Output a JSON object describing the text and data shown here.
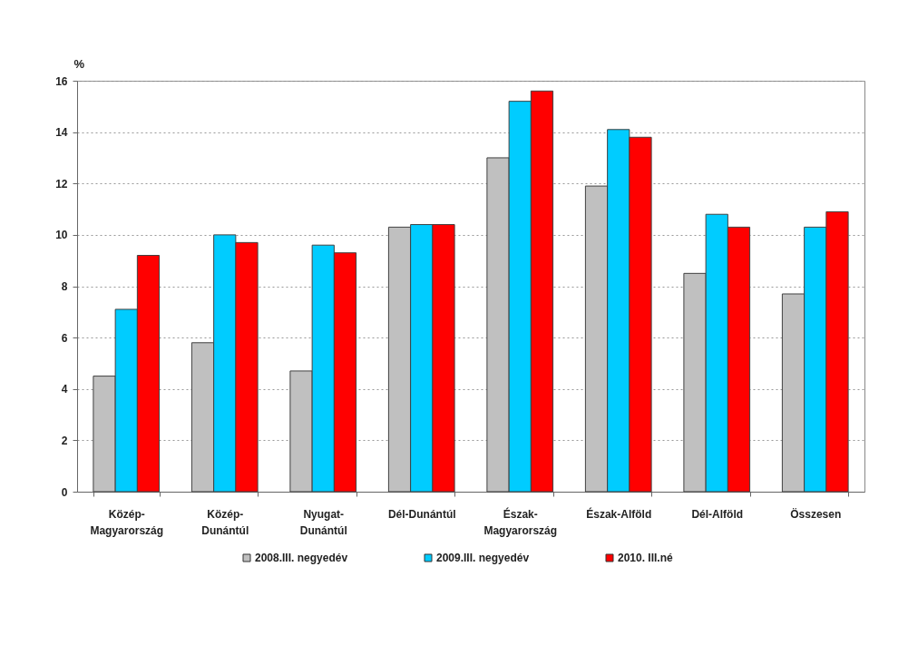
{
  "chart_data": {
    "type": "bar",
    "ylabel": "%",
    "categories": [
      "Közép-\nMagyarország",
      "Közép-\nDunántúl",
      "Nyugat-\nDunántúl",
      "Dél-Dunántúl",
      "Észak-\nMagyarország",
      "Észak-Alföld",
      "Dél-Alföld",
      "Összesen"
    ],
    "series": [
      {
        "name": "2008.III. negyedév",
        "color": "#c0c0c0",
        "values": [
          4.5,
          5.8,
          4.7,
          10.3,
          13.0,
          11.9,
          8.5,
          7.7
        ]
      },
      {
        "name": "2009.III. negyedév",
        "color": "#00ccff",
        "values": [
          7.1,
          10.0,
          9.6,
          10.4,
          15.2,
          14.1,
          10.8,
          10.3
        ]
      },
      {
        "name": "2010. III.né",
        "color": "#ff0000",
        "values": [
          9.2,
          9.7,
          9.3,
          10.4,
          15.6,
          13.8,
          10.3,
          10.9
        ]
      }
    ],
    "ylim": [
      0,
      16
    ],
    "yticks": [
      0,
      2,
      4,
      6,
      8,
      10,
      12,
      14,
      16
    ],
    "grid": "y",
    "legend": "bottom"
  }
}
